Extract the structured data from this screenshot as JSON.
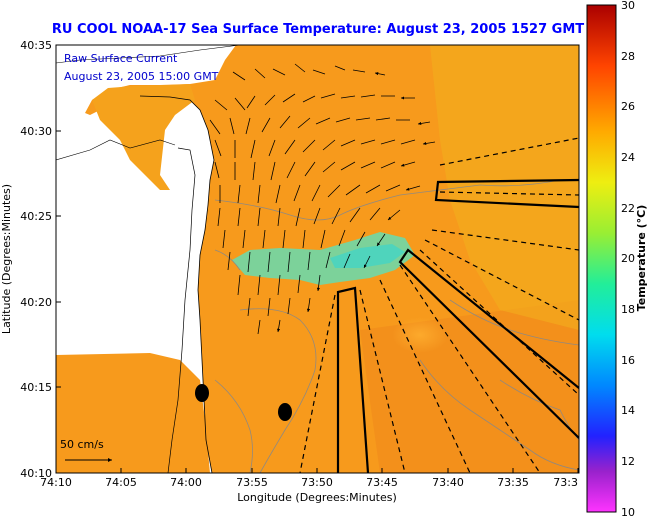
{
  "title": "RU COOL  NOAA-17  Sea Surface Temperature:  August 23, 2005 1527 GMT",
  "legend": {
    "line1": "Raw Surface Current",
    "line2": "August 23, 2005 15:00 GMT"
  },
  "scale_label": "50 cm/s",
  "map": {
    "xlabel": "Longitude (Degrees:Minutes)",
    "ylabel": "Latitude (Degrees:Minutes)",
    "x_ticks": [
      "74:10",
      "74:05",
      "74:00",
      "73:55",
      "73:50",
      "73:45",
      "73:40",
      "73:35",
      "73:3"
    ],
    "y_ticks": [
      "40:35",
      "40:30",
      "40:25",
      "40:20",
      "40:15",
      "40:10"
    ],
    "lon_range": [
      -74.1667,
      -73.5
    ],
    "lat_range": [
      40.1667,
      40.5833
    ]
  },
  "colorbar": {
    "label": "Temperature (°C)",
    "ticks": [
      "30",
      "28",
      "26",
      "24",
      "22",
      "20",
      "18",
      "16",
      "14",
      "12",
      "10"
    ],
    "range": [
      10,
      30
    ]
  },
  "colors": {
    "land": "#ffffff",
    "sst_main": "#f79a1c",
    "sst_warm": "#f0801a",
    "sst_yellow": "#f3bb1e",
    "sst_cool": "#66e0b8",
    "title_blue": "#0000ff"
  }
}
